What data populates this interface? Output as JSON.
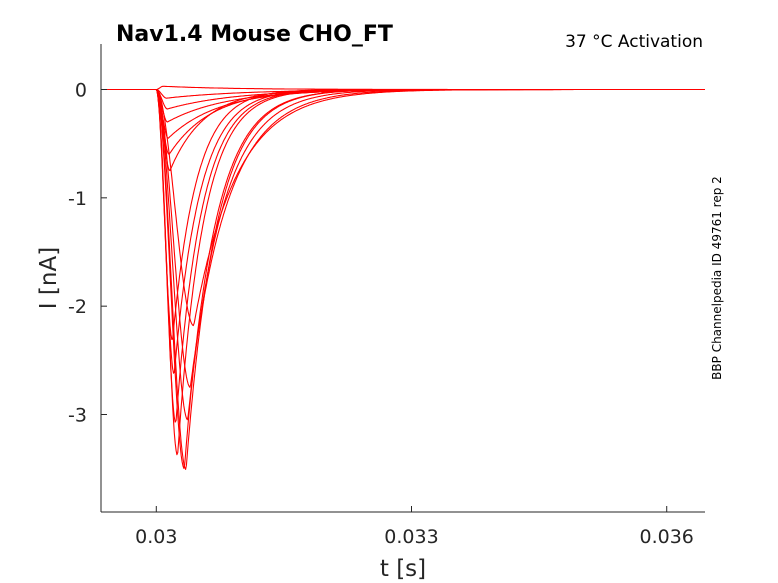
{
  "chart_data": {
    "type": "line",
    "title": "Nav1.4  Mouse  CHO_FT",
    "subtitle": "37 °C  Activation",
    "side_label": "BBP Channelpedia ID 49761 rep 2",
    "xlabel": "t [s]",
    "ylabel": "I [nA]",
    "xlim": [
      0.02935,
      0.03645
    ],
    "ylim": [
      -3.9,
      0.42
    ],
    "xticks": [
      0.03,
      0.033,
      0.036
    ],
    "xtick_labels": [
      "0.03",
      "0.033",
      "0.036"
    ],
    "yticks": [
      0,
      -1,
      -2,
      -3
    ],
    "ytick_labels": [
      "0",
      "-1",
      "-2",
      "-3"
    ],
    "grid": false,
    "line_color": "#ff0000",
    "series": [
      {
        "peak_t": 0.03008,
        "peak_i": 0.03,
        "tau": 0.0008
      },
      {
        "peak_t": 0.03012,
        "peak_i": -0.08,
        "tau": 0.0009
      },
      {
        "peak_t": 0.03013,
        "peak_i": -0.18,
        "tau": 0.0008
      },
      {
        "peak_t": 0.03013,
        "peak_i": -0.3,
        "tau": 0.0007
      },
      {
        "peak_t": 0.03014,
        "peak_i": -0.45,
        "tau": 0.0006
      },
      {
        "peak_t": 0.03015,
        "peak_i": -0.6,
        "tau": 0.0005
      },
      {
        "peak_t": 0.03016,
        "peak_i": -0.75,
        "tau": 0.0004
      },
      {
        "peak_t": 0.03019,
        "peak_i": -2.32,
        "tau": 0.00028
      },
      {
        "peak_t": 0.03021,
        "peak_i": -2.63,
        "tau": 0.0003
      },
      {
        "peak_t": 0.03023,
        "peak_i": -3.08,
        "tau": 0.0003
      },
      {
        "peak_t": 0.03025,
        "peak_i": -3.38,
        "tau": 0.0003
      },
      {
        "peak_t": 0.03033,
        "peak_i": -3.5,
        "tau": 0.00035
      },
      {
        "peak_t": 0.03035,
        "peak_i": -3.51,
        "tau": 0.00035
      },
      {
        "peak_t": 0.03037,
        "peak_i": -3.05,
        "tau": 0.0004
      },
      {
        "peak_t": 0.0304,
        "peak_i": -2.75,
        "tau": 0.00045
      },
      {
        "peak_t": 0.03044,
        "peak_i": -2.18,
        "tau": 0.0005
      }
    ]
  }
}
